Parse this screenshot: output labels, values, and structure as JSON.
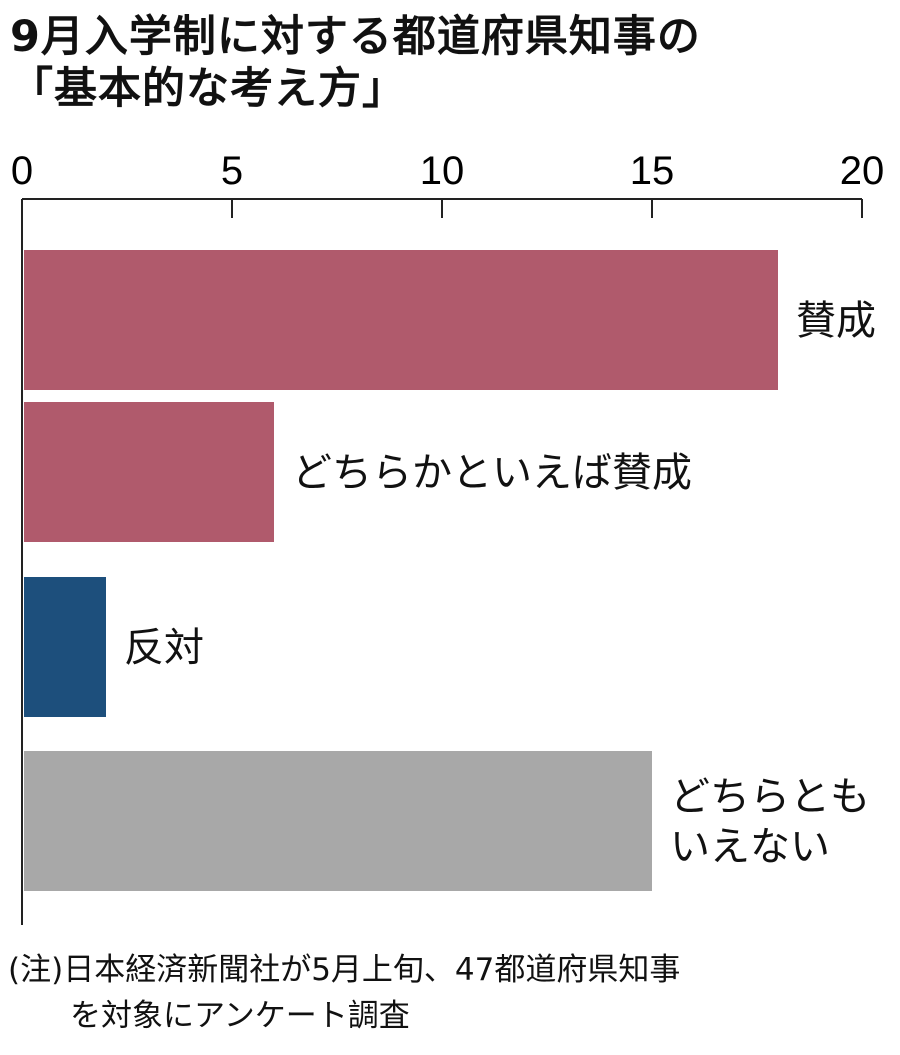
{
  "chart_data": {
    "type": "bar",
    "orientation": "horizontal",
    "title": [
      "9月入学制に対する都道府県知事の",
      "「基本的な考え方」"
    ],
    "categories": [
      "賛成",
      "どちらかといえば賛成",
      "反対",
      "どちらともいえない"
    ],
    "category_label_lines": [
      [
        "賛成"
      ],
      [
        "どちらかといえば賛成"
      ],
      [
        "反対"
      ],
      [
        "どちらとも",
        "いえない"
      ]
    ],
    "values": [
      18,
      6,
      2,
      15
    ],
    "colors": [
      "#b05a6c",
      "#b05a6c",
      "#1d4f7c",
      "#a8a8a8"
    ],
    "xlim": [
      0,
      20
    ],
    "xticks": [
      0,
      5,
      10,
      15,
      20
    ],
    "xtick_labels": [
      "0",
      "5",
      "10",
      "15",
      "20"
    ],
    "axis_position": "top",
    "grid": false,
    "note": [
      "(注)日本経済新聞社が5月上旬、47都道府県知事",
      "を対象にアンケート調査"
    ]
  }
}
